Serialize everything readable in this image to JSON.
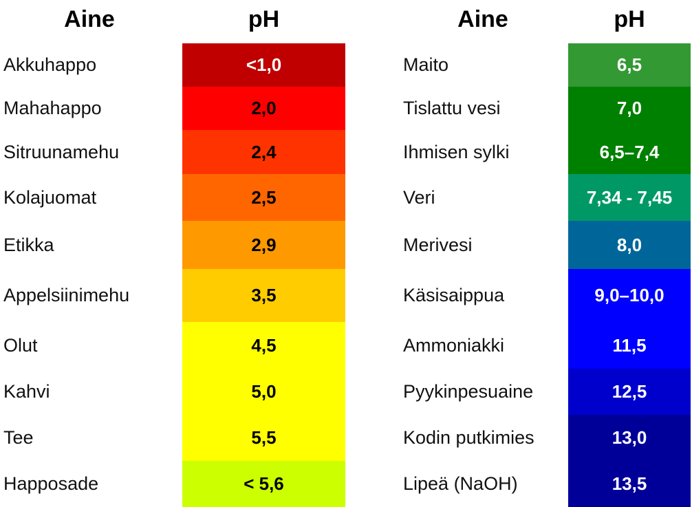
{
  "left": {
    "header_name": "Aine",
    "header_ph": "pH",
    "rows": [
      {
        "name": "Akkuhappo",
        "ph": "<1,0",
        "color": "#c00000",
        "text_color": "#ffffff"
      },
      {
        "name": "Mahahappo",
        "ph": "2,0",
        "color": "#ff0000",
        "text_color": "#000000"
      },
      {
        "name": "Sitruunamehu",
        "ph": "2,4",
        "color": "#ff3300",
        "text_color": "#000000"
      },
      {
        "name": "Kolajuomat",
        "ph": "2,5",
        "color": "#ff6600",
        "text_color": "#000000"
      },
      {
        "name": "Etikka",
        "ph": "2,9",
        "color": "#ff9900",
        "text_color": "#000000"
      },
      {
        "name": "Appelsiinimehu",
        "ph": "3,5",
        "color": "#ffcc00",
        "text_color": "#000000"
      },
      {
        "name": "Olut",
        "ph": "4,5",
        "color": "#ffff00",
        "text_color": "#000000"
      },
      {
        "name": "Kahvi",
        "ph": "5,0",
        "color": "#ffff00",
        "text_color": "#000000"
      },
      {
        "name": "Tee",
        "ph": "5,5",
        "color": "#ffff00",
        "text_color": "#000000"
      },
      {
        "name": "Happosade",
        "ph": "< 5,6",
        "color": "#ccff00",
        "text_color": "#000000"
      }
    ]
  },
  "right": {
    "header_name": "Aine",
    "header_ph": "pH",
    "rows": [
      {
        "name": "Maito",
        "ph": "6,5",
        "color": "#339933",
        "text_color": "#ffffff"
      },
      {
        "name": "Tislattu vesi",
        "ph": "7,0",
        "color": "#008000",
        "text_color": "#ffffff"
      },
      {
        "name": "Ihmisen sylki",
        "ph": "6,5–7,4",
        "color": "#008000",
        "text_color": "#ffffff"
      },
      {
        "name": "Veri",
        "ph": "7,34 - 7,45",
        "color": "#009966",
        "text_color": "#ffffff"
      },
      {
        "name": "Merivesi",
        "ph": "8,0",
        "color": "#006699",
        "text_color": "#ffffff"
      },
      {
        "name": "Käsisaippua",
        "ph": "9,0–10,0",
        "color": "#0000ff",
        "text_color": "#ffffff"
      },
      {
        "name": "Ammoniakki",
        "ph": "11,5",
        "color": "#0000ff",
        "text_color": "#ffffff"
      },
      {
        "name": "Pyykinpesuaine",
        "ph": "12,5",
        "color": "#0000cc",
        "text_color": "#ffffff"
      },
      {
        "name": "Kodin putkimies",
        "ph": "13,0",
        "color": "#000099",
        "text_color": "#ffffff"
      },
      {
        "name": "Lipeä (NaOH)",
        "ph": "13,5",
        "color": "#000099",
        "text_color": "#ffffff"
      }
    ]
  }
}
